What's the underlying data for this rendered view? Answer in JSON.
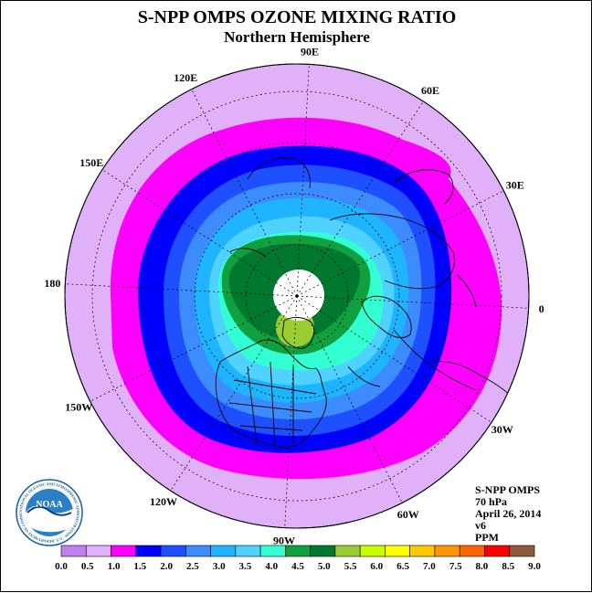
{
  "header": {
    "title": "S-NPP OMPS OZONE MIXING RATIO",
    "subtitle": "Northern Hemisphere"
  },
  "longitude_labels": [
    "90E",
    "60E",
    "30E",
    "0",
    "30W",
    "60W",
    "90W",
    "120W",
    "150W",
    "180",
    "150E",
    "120E"
  ],
  "info_box": {
    "instrument": "S-NPP OMPS",
    "level": "70 hPa",
    "date": "April 26, 2014",
    "version": "v6",
    "units": "PPM"
  },
  "logo": {
    "name": "NOAA",
    "ring_text": "NATIONAL OCEANIC AND ATMOSPHERIC ADMINISTRATION · U.S. DEPARTMENT OF COMMERCE"
  },
  "colorbar": {
    "ticks": [
      "0.0",
      "0.5",
      "1.0",
      "1.5",
      "2.0",
      "2.5",
      "3.0",
      "3.5",
      "4.0",
      "4.5",
      "5.0",
      "5.5",
      "6.0",
      "6.5",
      "7.0",
      "7.5",
      "8.0",
      "8.5",
      "9.0"
    ],
    "colors": [
      "#c080f0",
      "#e0b0f8",
      "#ff00ff",
      "#0000ff",
      "#1e50ff",
      "#3c8cff",
      "#1eb4ff",
      "#50d2ff",
      "#32ffd2",
      "#10a040",
      "#007830",
      "#9acd32",
      "#c8ff00",
      "#ffff00",
      "#ffc800",
      "#ff9600",
      "#ff6400",
      "#ff0000",
      "#8b5a3c"
    ]
  },
  "colors": {
    "outside_disk": "#e0b0f8",
    "mid_band": "#ff00ff",
    "dark_blue_band": "#0000ff",
    "blue_band": "#1e50ff",
    "polar_core": "#007830",
    "pole_mask": "#ffffff",
    "peak": "#9acd32"
  }
}
